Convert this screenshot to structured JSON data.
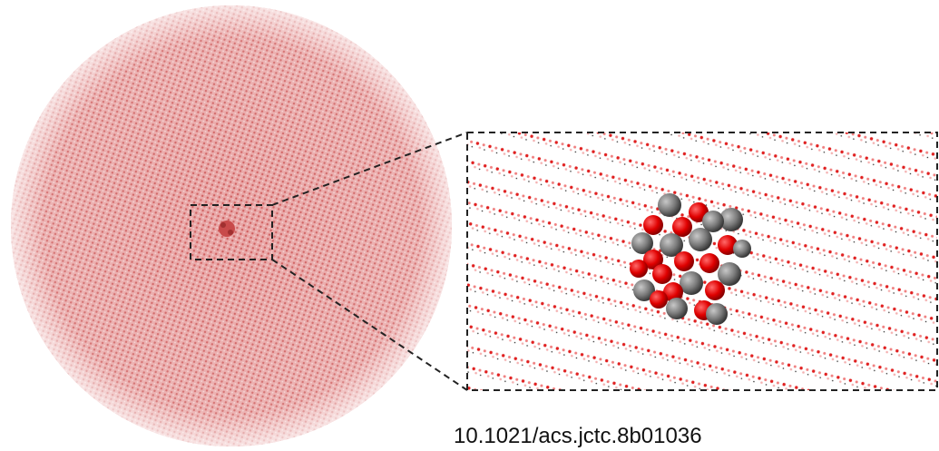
{
  "caption": "10.1021/acs.jctc.8b01036"
}
